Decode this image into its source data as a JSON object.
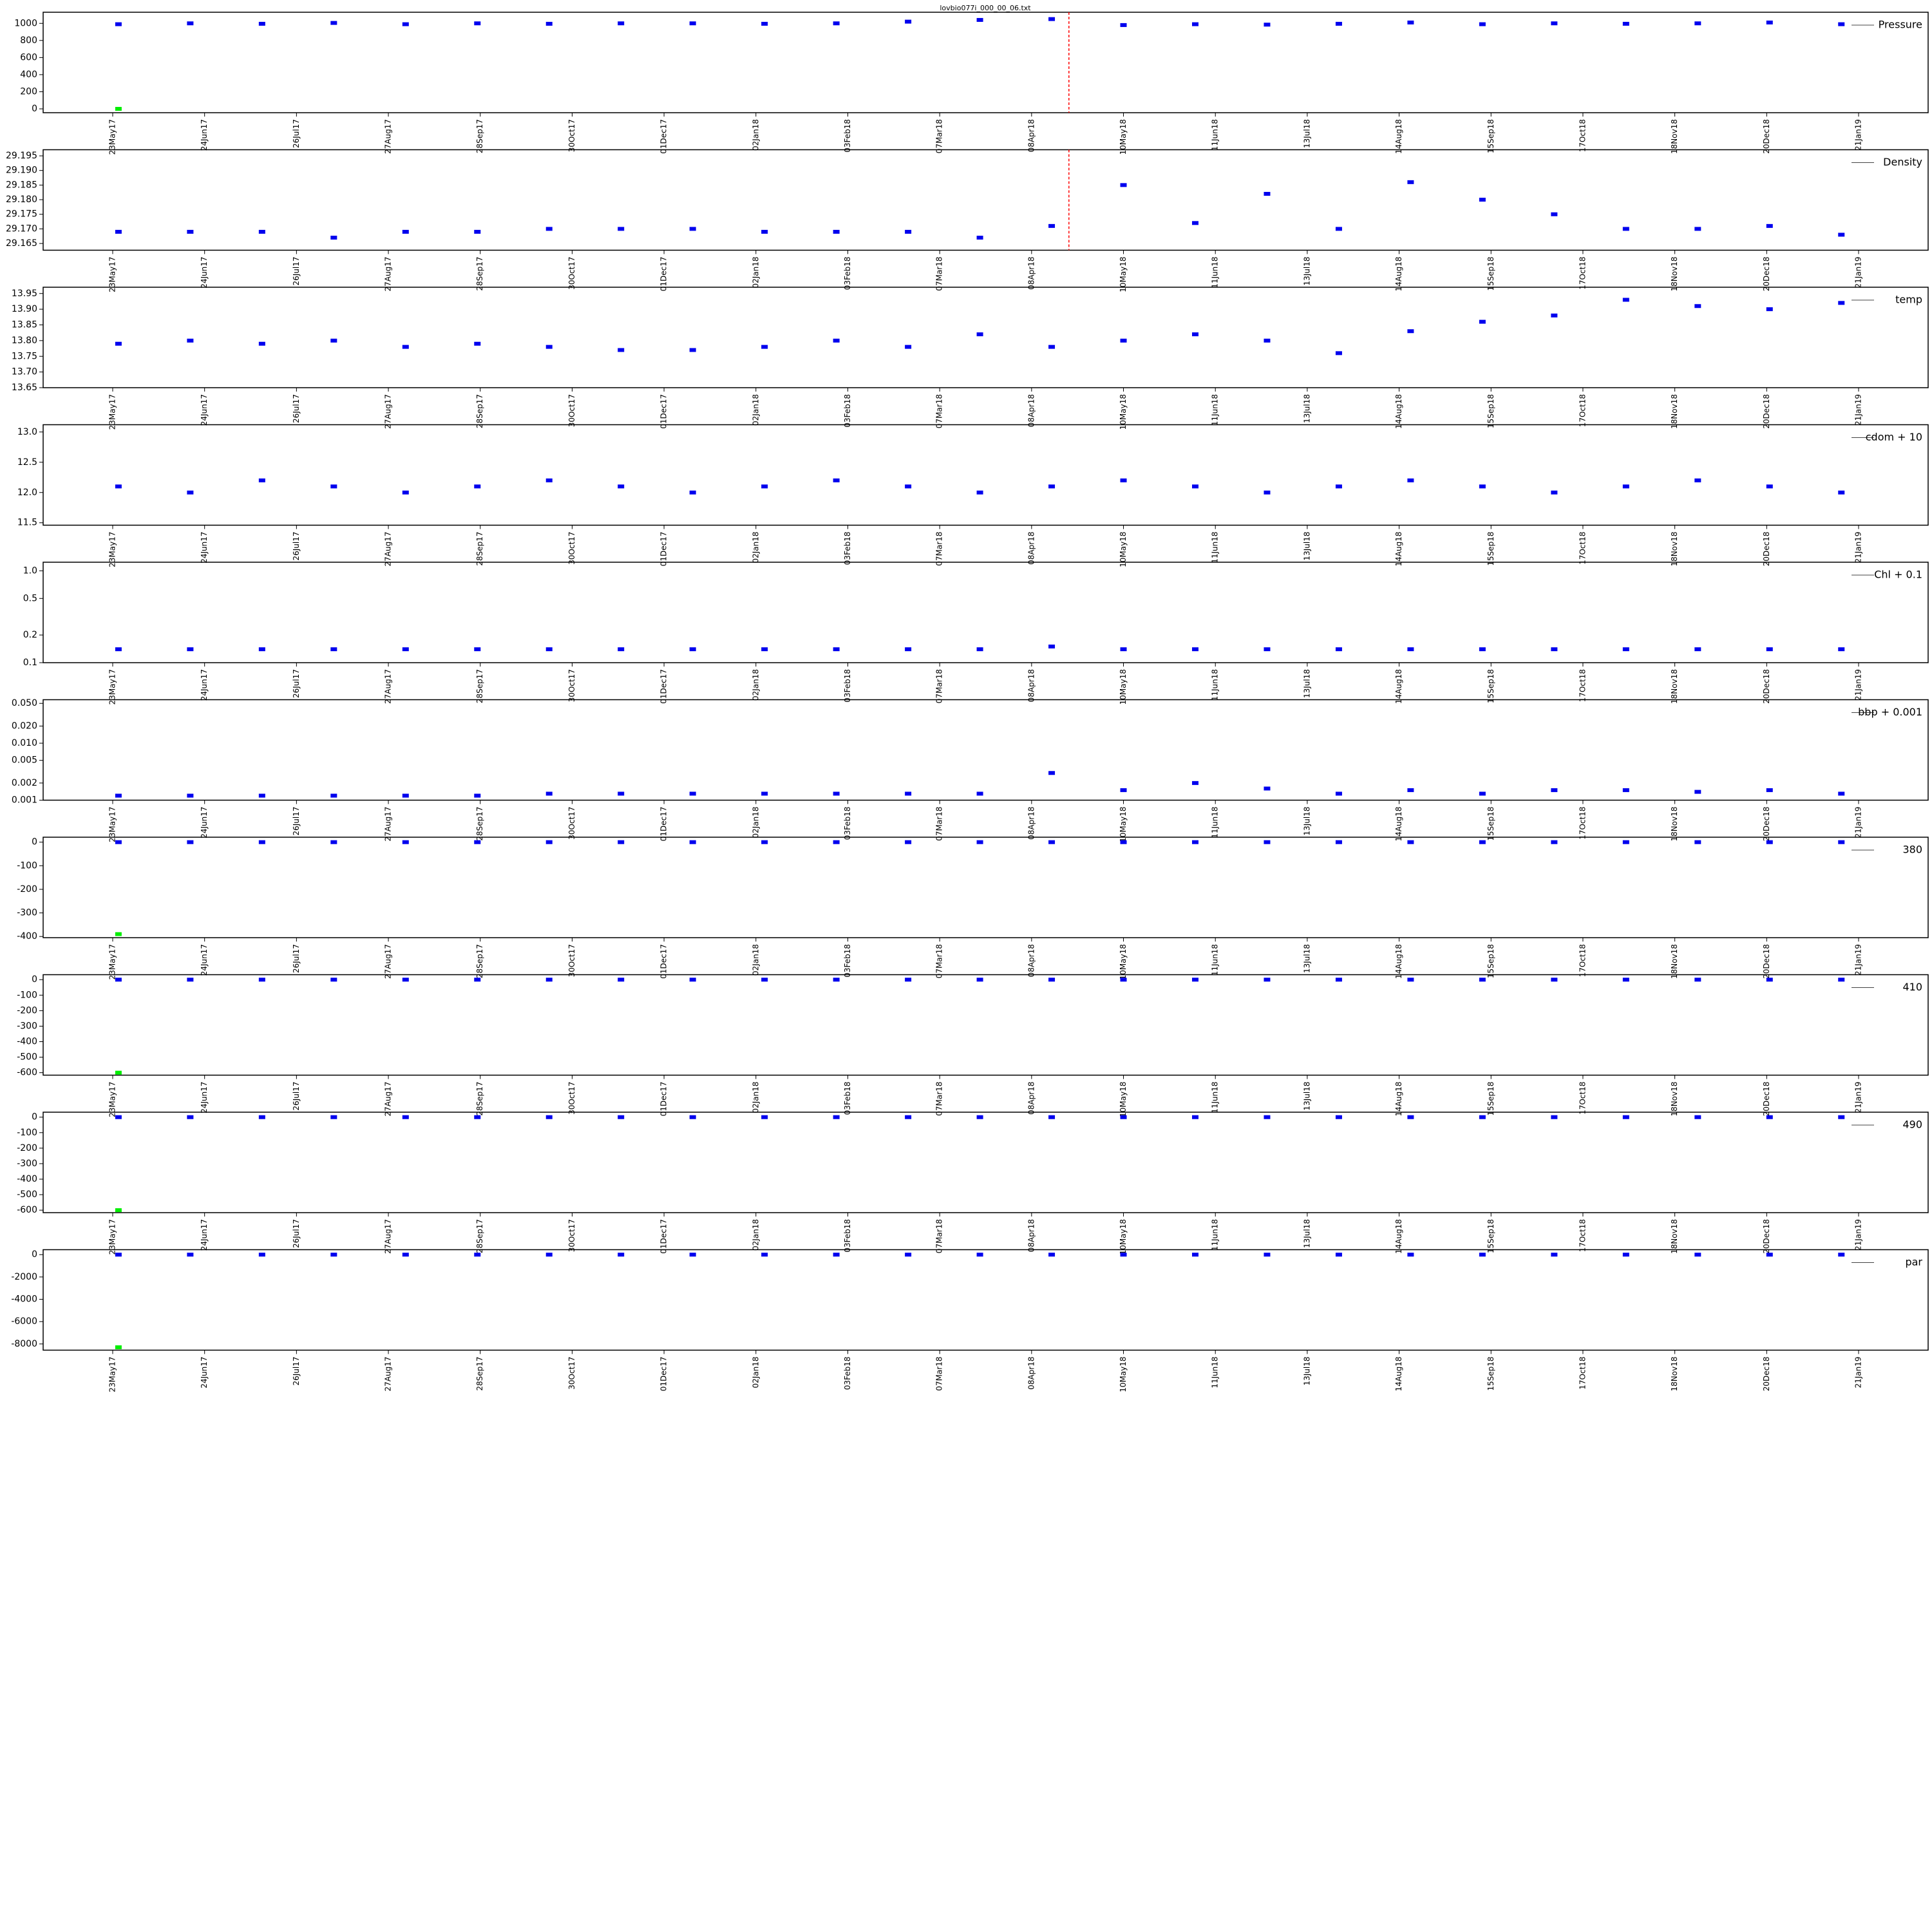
{
  "chart_data": {
    "type": "scatter",
    "title": "lovbio077i_000_00_06.txt",
    "xlim": [
      "2017-05-23",
      "2019-01-21"
    ],
    "xticks": [
      {
        "value": "2017-05-23",
        "label": "23May17"
      },
      {
        "value": "2017-06-24",
        "label": "24Jun17"
      },
      {
        "value": "2017-07-26",
        "label": "26Jul17"
      },
      {
        "value": "2017-08-27",
        "label": "27Aug17"
      },
      {
        "value": "2017-09-28",
        "label": "28Sep17"
      },
      {
        "value": "2017-10-30",
        "label": "30Oct17"
      },
      {
        "value": "2017-12-01",
        "label": "01Dec17"
      },
      {
        "value": "2018-01-02",
        "label": "02Jan18"
      },
      {
        "value": "2018-02-03",
        "label": "03Feb18"
      },
      {
        "value": "2018-03-07",
        "label": "07Mar18"
      },
      {
        "value": "2018-04-08",
        "label": "08Apr18"
      },
      {
        "value": "2018-05-10",
        "label": "10May18"
      },
      {
        "value": "2018-06-11",
        "label": "11Jun18"
      },
      {
        "value": "2018-07-13",
        "label": "13Jul18"
      },
      {
        "value": "2018-08-14",
        "label": "14Aug18"
      },
      {
        "value": "2018-09-15",
        "label": "15Sep18"
      },
      {
        "value": "2018-10-17",
        "label": "17Oct18"
      },
      {
        "value": "2018-11-18",
        "label": "18Nov18"
      },
      {
        "value": "2018-12-20",
        "label": "20Dec18"
      },
      {
        "value": "2019-01-21",
        "label": "21Jan19"
      }
    ],
    "x": [
      "2017-05-25",
      "2017-06-19",
      "2017-07-14",
      "2017-08-08",
      "2017-09-02",
      "2017-09-27",
      "2017-10-22",
      "2017-11-16",
      "2017-12-11",
      "2018-01-05",
      "2018-01-30",
      "2018-02-24",
      "2018-03-21",
      "2018-04-15",
      "2018-05-10",
      "2018-06-04",
      "2018-06-29",
      "2018-07-24",
      "2018-08-18",
      "2018-09-12",
      "2018-10-07",
      "2018-11-01",
      "2018-11-26",
      "2018-12-21",
      "2019-01-15"
    ],
    "panels": [
      {
        "legend": "Pressure",
        "ylim": [
          -45,
          1130
        ],
        "yticks": [
          0,
          200,
          400,
          600,
          800,
          1000
        ],
        "vline": {
          "x": "2018-04-21",
          "color": "#ff0000"
        },
        "series": [
          {
            "color": "#0000ee",
            "values": [
              990,
              1000,
              995,
              1005,
              990,
              1000,
              995,
              1000,
              1000,
              995,
              1000,
              1020,
              1040,
              1050,
              980,
              990,
              985,
              995,
              1010,
              990,
              1000,
              995,
              1000,
              1010,
              990
            ]
          },
          {
            "color": "#00ee00",
            "values": [
              0,
              null,
              null,
              null,
              null,
              null,
              null,
              null,
              null,
              null,
              null,
              null,
              null,
              null,
              null,
              null,
              null,
              null,
              null,
              null,
              null,
              null,
              null,
              null,
              null
            ]
          }
        ]
      },
      {
        "legend": "Density",
        "ylim": [
          29.1627,
          29.1971
        ],
        "yticks": [
          29.165,
          {
            "value": 29.17,
            "label": "29.170"
          },
          29.175,
          {
            "value": 29.18,
            "label": "29.180"
          },
          29.185,
          {
            "value": 29.19,
            "label": "29.190"
          },
          29.195
        ],
        "vline": {
          "x": "2018-04-21",
          "color": "#ff0000"
        },
        "series": [
          {
            "color": "#0000ee",
            "values": [
              29.169,
              29.169,
              29.169,
              29.167,
              29.169,
              29.169,
              29.17,
              29.17,
              29.17,
              29.169,
              29.169,
              29.169,
              29.167,
              29.171,
              29.185,
              29.172,
              29.182,
              29.17,
              29.186,
              29.18,
              29.175,
              29.17,
              29.17,
              29.171,
              29.168
            ]
          }
        ]
      },
      {
        "legend": "temp",
        "ylim": [
          13.65,
          13.97
        ],
        "yticks": [
          13.65,
          {
            "value": 13.7,
            "label": "13.70"
          },
          13.75,
          {
            "value": 13.8,
            "label": "13.80"
          },
          13.85,
          {
            "value": 13.9,
            "label": "13.90"
          },
          13.95
        ],
        "series": [
          {
            "color": "#0000ee",
            "values": [
              13.79,
              13.8,
              13.79,
              13.8,
              13.78,
              13.79,
              13.78,
              13.77,
              13.77,
              13.78,
              13.8,
              13.78,
              13.82,
              13.78,
              13.8,
              13.82,
              13.8,
              13.76,
              13.83,
              13.86,
              13.88,
              13.93,
              13.91,
              13.9,
              13.92
            ]
          }
        ]
      },
      {
        "legend": "cdom + 10",
        "ylim": [
          11.46,
          13.12
        ],
        "yticks": [
          11.5,
          {
            "value": 12,
            "label": "12.0"
          },
          12.5,
          {
            "value": 13,
            "label": "13.0"
          }
        ],
        "series": [
          {
            "color": "#0000ee",
            "values": [
              12.1,
              12.0,
              12.2,
              12.1,
              12.0,
              12.1,
              12.2,
              12.1,
              12.0,
              12.1,
              12.2,
              12.1,
              12.0,
              12.1,
              12.2,
              12.1,
              12.0,
              12.1,
              12.2,
              12.1,
              12.0,
              12.1,
              12.2,
              12.1,
              12.0
            ]
          }
        ]
      },
      {
        "legend": "Chl + 0.1",
        "log": true,
        "ylim": [
          0.1,
          1.24
        ],
        "yticks": [
          0.1,
          0.2,
          0.5,
          {
            "value": 1,
            "label": "1.0"
          }
        ],
        "series": [
          {
            "color": "#0000ee",
            "values": [
              0.14,
              0.14,
              0.14,
              0.14,
              0.14,
              0.14,
              0.14,
              0.14,
              0.14,
              0.14,
              0.14,
              0.14,
              0.14,
              0.15,
              0.14,
              0.14,
              0.14,
              0.14,
              0.14,
              0.14,
              0.14,
              0.14,
              0.14,
              0.14,
              0.14
            ]
          }
        ]
      },
      {
        "legend": "bbp + 0.001",
        "log": true,
        "ylim": [
          0.001,
          0.058
        ],
        "yticks": [
          0.001,
          0.002,
          0.005,
          {
            "value": 0.01,
            "label": "0.010"
          },
          {
            "value": 0.02,
            "label": "0.020"
          },
          {
            "value": 0.05,
            "label": "0.050"
          }
        ],
        "series": [
          {
            "color": "#0000ee",
            "values": [
              0.0012,
              0.0012,
              0.0012,
              0.0012,
              0.0012,
              0.0012,
              0.0013,
              0.0013,
              0.0013,
              0.0013,
              0.0013,
              0.0013,
              0.0013,
              0.003,
              0.0015,
              0.002,
              0.0016,
              0.0013,
              0.0015,
              0.0013,
              0.0015,
              0.0015,
              0.0014,
              0.0015,
              0.0013
            ]
          }
        ]
      },
      {
        "legend": "380",
        "ylim": [
          -405,
          21
        ],
        "yticks": [
          0,
          -100,
          -200,
          -300,
          -400
        ],
        "series": [
          {
            "color": "#0000ee",
            "values": [
              0,
              0,
              0,
              0,
              0,
              0,
              0,
              0,
              0,
              0,
              0,
              0,
              0,
              0,
              0,
              0,
              0,
              0,
              0,
              0,
              0,
              0,
              0,
              0,
              0
            ]
          },
          {
            "color": "#00ee00",
            "values": [
              -390,
              null,
              null,
              null,
              null,
              null,
              null,
              null,
              null,
              null,
              null,
              null,
              null,
              null,
              null,
              null,
              null,
              null,
              null,
              null,
              null,
              null,
              null,
              null,
              null
            ]
          }
        ]
      },
      {
        "legend": "410",
        "ylim": [
          -616,
          32
        ],
        "yticks": [
          0,
          -100,
          -200,
          -300,
          -400,
          -500,
          -600
        ],
        "series": [
          {
            "color": "#0000ee",
            "values": [
              0,
              0,
              0,
              0,
              0,
              0,
              0,
              0,
              0,
              0,
              0,
              0,
              0,
              0,
              0,
              0,
              0,
              0,
              0,
              0,
              0,
              0,
              0,
              0,
              0
            ]
          },
          {
            "color": "#00ee00",
            "values": [
              -600,
              null,
              null,
              null,
              null,
              null,
              null,
              null,
              null,
              null,
              null,
              null,
              null,
              null,
              null,
              null,
              null,
              null,
              null,
              null,
              null,
              null,
              null,
              null,
              null
            ]
          }
        ]
      },
      {
        "legend": "490",
        "ylim": [
          -616,
          32
        ],
        "yticks": [
          0,
          -100,
          -200,
          -300,
          -400,
          -500,
          -600
        ],
        "series": [
          {
            "color": "#0000ee",
            "values": [
              0,
              0,
              0,
              0,
              0,
              0,
              0,
              0,
              0,
              0,
              0,
              0,
              0,
              0,
              0,
              0,
              0,
              0,
              0,
              0,
              0,
              0,
              0,
              0,
              0
            ]
          },
          {
            "color": "#00ee00",
            "values": [
              -600,
              null,
              null,
              null,
              null,
              null,
              null,
              null,
              null,
              null,
              null,
              null,
              null,
              null,
              null,
              null,
              null,
              null,
              null,
              null,
              null,
              null,
              null,
              null,
              null
            ]
          }
        ]
      },
      {
        "legend": "par",
        "ylim": [
          -8556,
          444
        ],
        "yticks": [
          0,
          -2000,
          -4000,
          -6000,
          -8000
        ],
        "series": [
          {
            "color": "#0000ee",
            "values": [
              0,
              0,
              0,
              0,
              0,
              0,
              0,
              0,
              0,
              0,
              0,
              0,
              0,
              0,
              0,
              0,
              0,
              0,
              0,
              0,
              0,
              0,
              0,
              0,
              0
            ]
          },
          {
            "color": "#00ee00",
            "values": [
              -8300,
              null,
              null,
              null,
              null,
              null,
              null,
              null,
              null,
              null,
              null,
              null,
              null,
              null,
              null,
              null,
              null,
              null,
              null,
              null,
              null,
              null,
              null,
              null,
              null
            ]
          }
        ]
      }
    ]
  }
}
